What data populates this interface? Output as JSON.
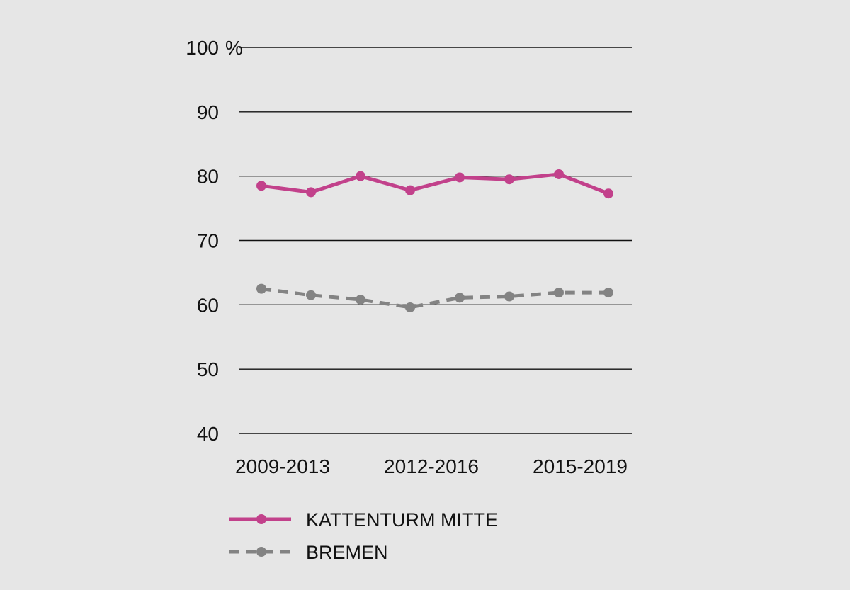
{
  "chart_data": {
    "type": "line",
    "y_unit": "%",
    "ylim": [
      40,
      100
    ],
    "yticks": [
      "40",
      "50",
      "60",
      "70",
      "80",
      "90",
      "100"
    ],
    "x_tick_labels": [
      "2009-2013",
      "2012-2016",
      "2015-2019"
    ],
    "x_tick_indices": [
      0,
      3,
      6
    ],
    "n_points": 8,
    "grid": true,
    "legend_position": "bottom",
    "series": [
      {
        "name": "KATTENTURM MITTE",
        "values": [
          78.5,
          77.5,
          80.0,
          77.8,
          79.8,
          79.5,
          80.3,
          77.3
        ],
        "color": "#c2418b",
        "style": "solid"
      },
      {
        "name": "BREMEN",
        "values": [
          62.5,
          61.5,
          60.8,
          59.6,
          61.1,
          61.3,
          61.9,
          61.9
        ],
        "color": "#838383",
        "style": "dashed"
      }
    ]
  }
}
